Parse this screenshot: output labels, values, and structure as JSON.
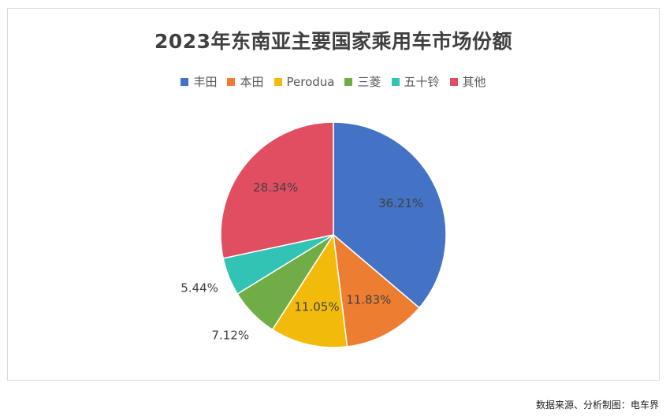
{
  "chart_data": {
    "type": "pie",
    "title": "2023年东南亚主要国家乘用车市场份额",
    "legend_position": "top",
    "categories": [
      "丰田",
      "本田",
      "Perodua",
      "三菱",
      "五十铃",
      "其他"
    ],
    "values": [
      36.21,
      11.83,
      11.05,
      7.12,
      5.44,
      28.34
    ],
    "value_labels": [
      "36.21%",
      "11.83%",
      "11.05%",
      "7.12%",
      "5.44%",
      "28.34%"
    ],
    "colors": [
      "#4472C4",
      "#ED7D31",
      "#F2BB0B",
      "#70AD47",
      "#33C3B5",
      "#E14E62"
    ]
  },
  "source_text": "数据来源、分析制图：电车界"
}
